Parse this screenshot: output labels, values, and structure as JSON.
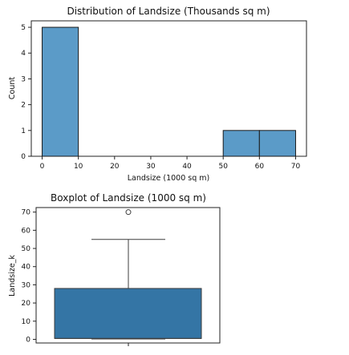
{
  "chart_data": [
    {
      "type": "bar",
      "title": "Distribution of Landsize (Thousands sq m)",
      "xlabel": "Landsize (1000 sq m)",
      "ylabel": "Count",
      "bins": [
        {
          "start": 0,
          "end": 10,
          "count": 5
        },
        {
          "start": 50,
          "end": 60,
          "count": 1
        },
        {
          "start": 60,
          "end": 70,
          "count": 1
        }
      ],
      "xlim": [
        -3,
        73
      ],
      "ylim": [
        0,
        5.25
      ],
      "xticks": [
        0,
        10,
        20,
        30,
        40,
        50,
        60,
        70
      ],
      "yticks": [
        0,
        1,
        2,
        3,
        4,
        5
      ],
      "bar_color": "#5b9bc8",
      "edge_color": "#1a1a1a",
      "grid": false
    },
    {
      "type": "boxplot",
      "title": "Boxplot of Landsize (1000 sq m)",
      "xlabel": "",
      "ylabel": "Landsize_k",
      "stats": {
        "min": 0.2,
        "q1": 0.5,
        "median": 0.5,
        "q3": 28,
        "whisker_high": 55,
        "outliers": [
          70
        ]
      },
      "ylim": [
        -2,
        72.5
      ],
      "yticks": [
        0,
        10,
        20,
        30,
        40,
        50,
        60,
        70
      ],
      "box_color": "#3475a5",
      "line_color": "#3d3d3d",
      "grid": false
    }
  ]
}
